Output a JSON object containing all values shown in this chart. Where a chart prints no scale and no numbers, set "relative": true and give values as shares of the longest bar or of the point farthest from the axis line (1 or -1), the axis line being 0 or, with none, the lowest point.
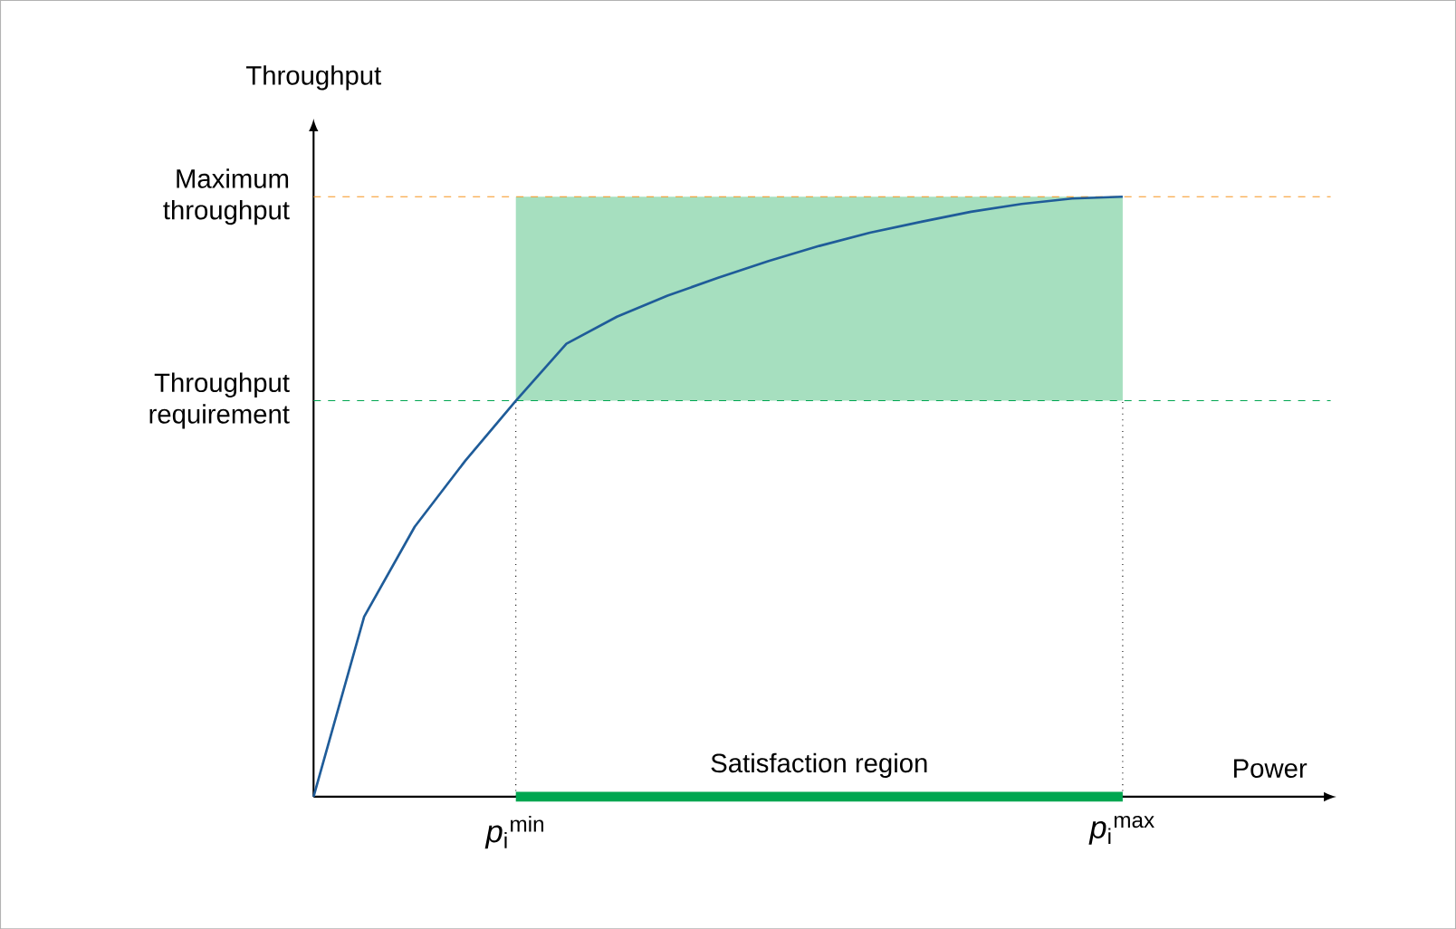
{
  "chart_data": {
    "type": "line",
    "relative": true,
    "xlabel": "Power",
    "ylabel": "Throughput",
    "categories": [
      null,
      null,
      null,
      null,
      "*p*$_{i}$$^{min}$",
      null,
      null,
      null,
      null,
      null,
      null,
      null,
      null,
      null,
      null,
      null,
      "*p*$_{i}$$^{max}$"
    ],
    "series": [
      {
        "color": "#1f5c99",
        "values": [
          0,
          0.3,
          0.45,
          0.56,
          0.66,
          0.755,
          0.8,
          0.835,
          0.865,
          0.893,
          0.918,
          0.94,
          0.958,
          0.975,
          0.988,
          0.997,
          1
        ]
      },
      {
        "color": "#00a651",
        "values": [
          null,
          null,
          null,
          null,
          0,
          0,
          0,
          0,
          0,
          0,
          0,
          0,
          0,
          0,
          0,
          0,
          0
        ]
      }
    ],
    "ref_lines": [
      {
        "axis": "y",
        "value": 1,
        "label": "Maximum throughput",
        "color": "#f7941d",
        "line_style": "dashed"
      },
      {
        "axis": "y",
        "value": 0.66,
        "label": "Throughput requirement",
        "color": "#00a651",
        "line_style": "dashed"
      }
    ],
    "bands": [
      {
        "axis": "y",
        "from": 0.66,
        "to": 1,
        "color": "#a6dfbf"
      }
    ],
    "annotations": [
      "Satisfaction region"
    ],
    "line_style": "solid"
  }
}
